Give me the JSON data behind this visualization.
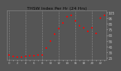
{
  "title": "THSW Index Per Hr (24 Hrs)",
  "bg_color": "#555555",
  "plot_bg_color": "#555555",
  "line_color": "#ff0000",
  "marker": "s",
  "marker_size": 1.5,
  "hours": [
    0,
    1,
    2,
    3,
    4,
    5,
    6,
    7,
    8,
    9,
    10,
    11,
    12,
    13,
    14,
    15,
    16,
    17,
    18,
    19,
    20,
    21,
    22,
    23
  ],
  "values": [
    30,
    28,
    27,
    27,
    28,
    29,
    29,
    30,
    30,
    42,
    55,
    67,
    77,
    87,
    97,
    100,
    90,
    82,
    78,
    72,
    78,
    68,
    95,
    100
  ],
  "ylim": [
    22,
    108
  ],
  "ytick_values": [
    25,
    35,
    45,
    55,
    65,
    75,
    85,
    95,
    105
  ],
  "ytick_labels": [
    "25",
    "35",
    "45",
    "55",
    "65",
    "75",
    "85",
    "95",
    "105"
  ],
  "grid_cols": [
    0,
    4,
    8,
    12,
    16,
    20
  ],
  "grid_color": "#888888",
  "grid_linestyle": "--",
  "grid_linewidth": 0.5,
  "tick_fontsize": 3.5,
  "title_fontsize": 4.5,
  "title_color": "#000000",
  "xlabel_fontsize": 3.0,
  "xtick_every": 1,
  "spine_color": "#888888",
  "spine_linewidth": 0.5
}
